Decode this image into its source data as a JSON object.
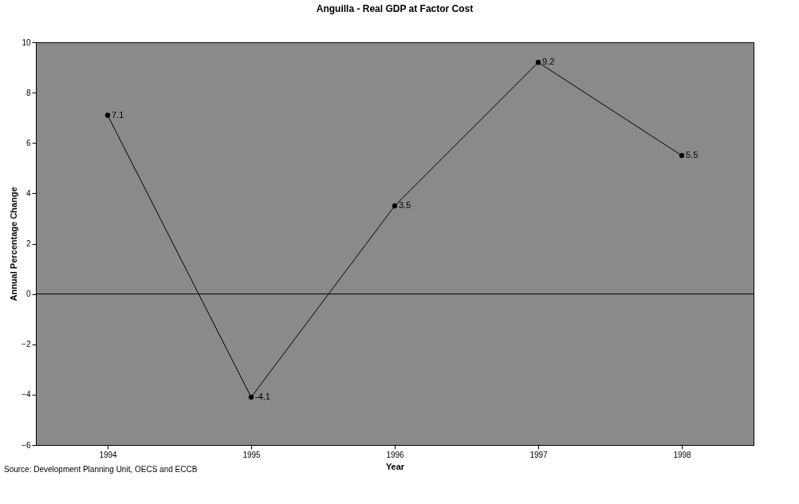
{
  "chart_data": {
    "type": "line",
    "title": "Anguilla - Real GDP at Factor Cost",
    "xlabel": "Year",
    "ylabel": "Annual Percentage Change",
    "categories": [
      "1994",
      "1995",
      "1996",
      "1997",
      "1998"
    ],
    "series": [
      {
        "color": "#000000",
        "values": [
          7.1,
          -4.1,
          3.5,
          9.2,
          5.5
        ]
      }
    ],
    "ylim": [
      -6,
      10
    ],
    "yticks": [
      -6,
      -4,
      -2,
      0,
      2,
      4,
      6,
      8,
      10
    ],
    "ref_lines": [
      {
        "axis": "y",
        "value": 0,
        "color": "#000000"
      }
    ],
    "data_labels": true,
    "marker": "circle",
    "line_style": "solid",
    "grid": false,
    "legend": false,
    "annotations": [
      "Source:  Development Planning Unit, OECS and ECCB"
    ]
  }
}
